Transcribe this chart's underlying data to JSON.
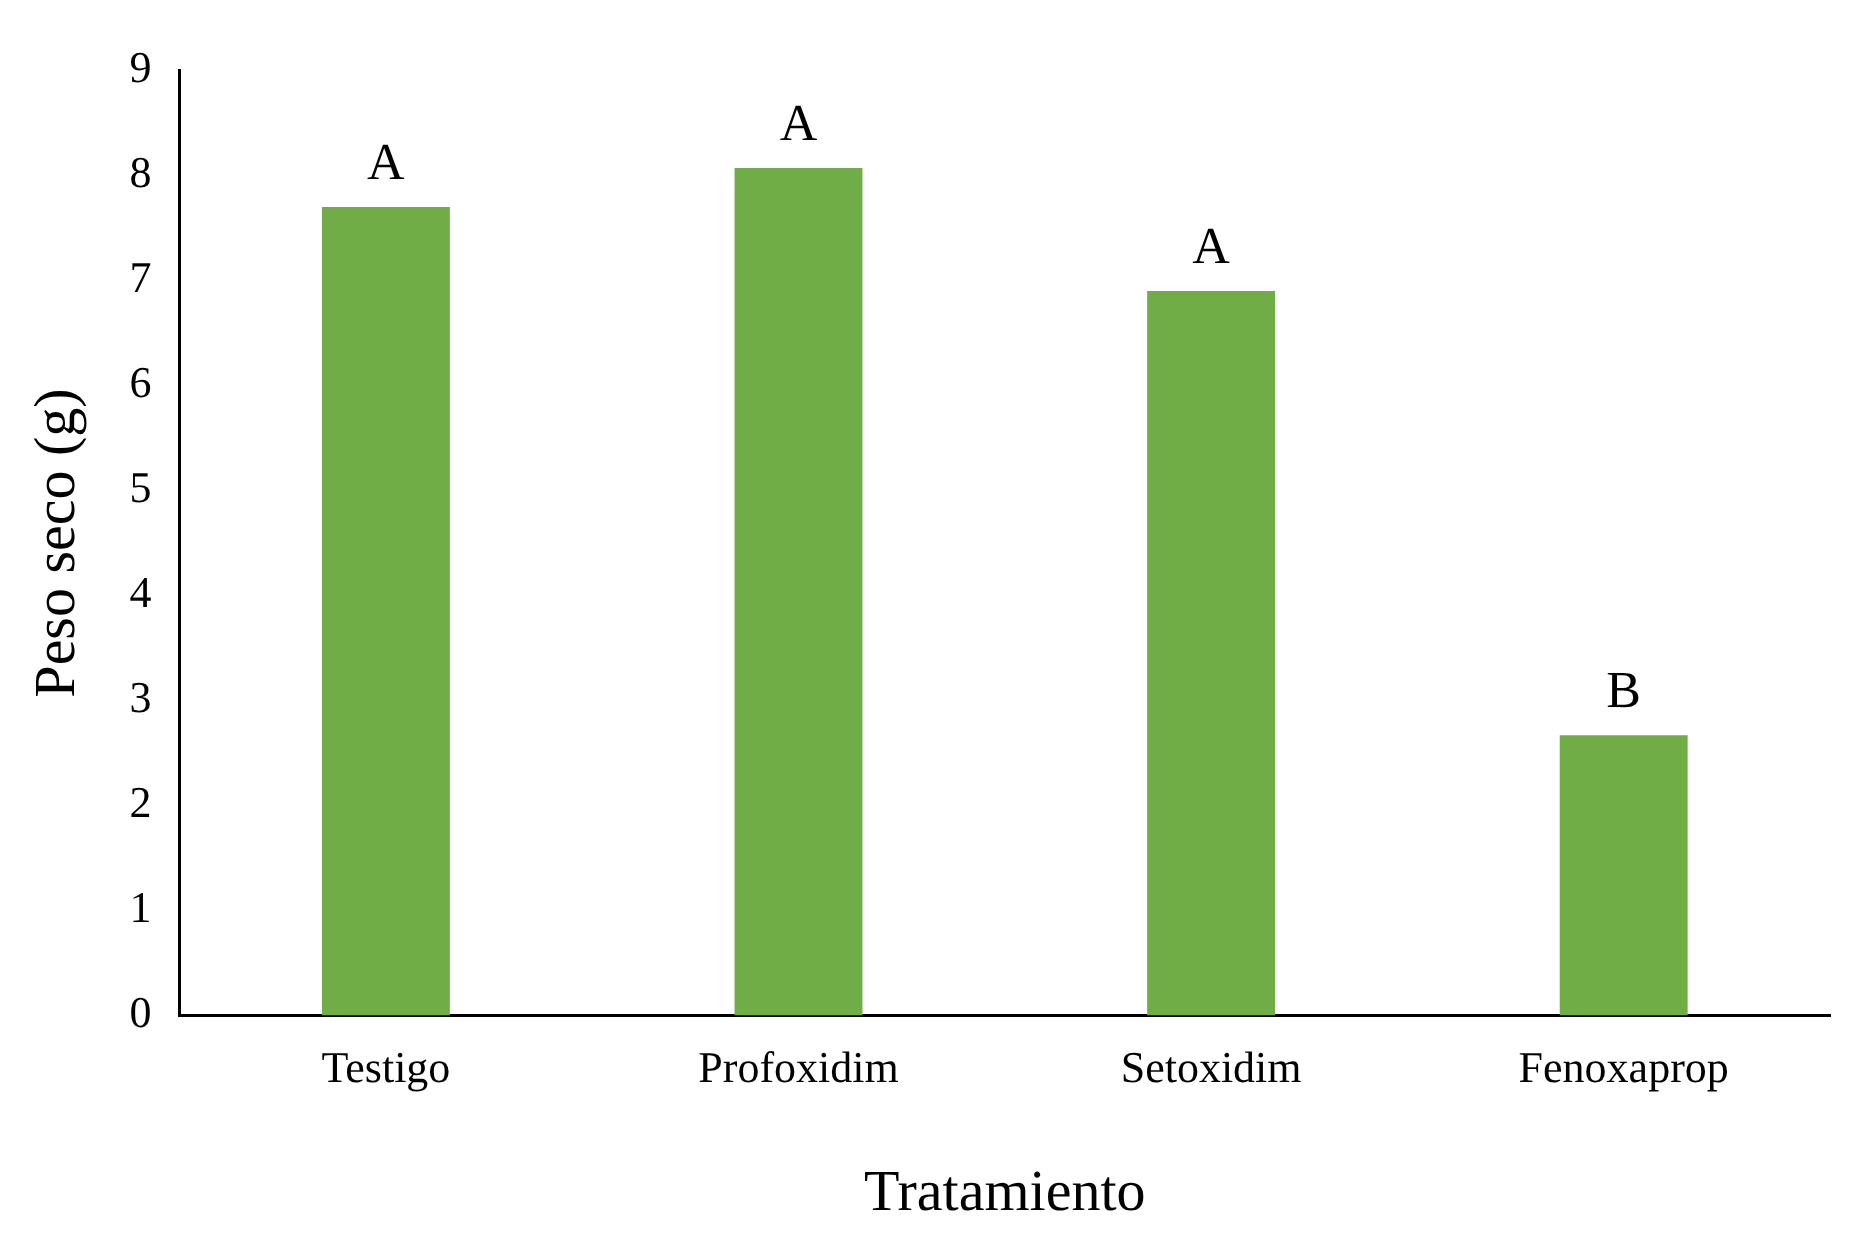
{
  "chart_data": {
    "type": "bar",
    "xlabel": "Tratamiento",
    "ylabel": "Peso seco (g)",
    "categories": [
      "Testigo",
      "Profoxidim",
      "Setoxidim",
      "Fenoxaprop"
    ],
    "values": [
      7.7,
      8.07,
      6.9,
      2.67
    ],
    "color": "#70ad47",
    "ylim": [
      0,
      9
    ],
    "yticks": [
      0,
      1,
      2,
      3,
      4,
      5,
      6,
      7,
      8,
      9
    ],
    "grid": false,
    "legend": false,
    "annotations": [
      {
        "text": "A",
        "x": "Testigo",
        "y": 7.7
      },
      {
        "text": "A",
        "x": "Profoxidim",
        "y": 8.07
      },
      {
        "text": "A",
        "x": "Setoxidim",
        "y": 6.9
      },
      {
        "text": "B",
        "x": "Fenoxaprop",
        "y": 2.67
      }
    ]
  }
}
